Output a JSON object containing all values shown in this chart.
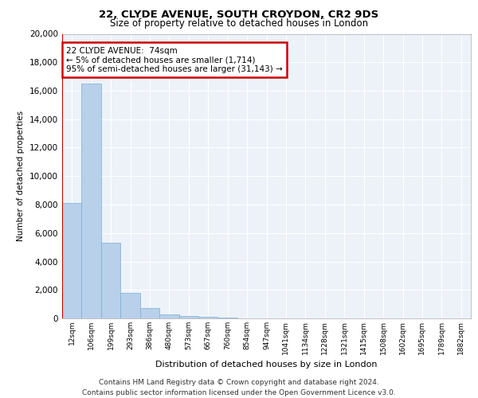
{
  "title1": "22, CLYDE AVENUE, SOUTH CROYDON, CR2 9DS",
  "title2": "Size of property relative to detached houses in London",
  "xlabel": "Distribution of detached houses by size in London",
  "ylabel": "Number of detached properties",
  "categories": [
    "12sqm",
    "106sqm",
    "199sqm",
    "293sqm",
    "386sqm",
    "480sqm",
    "573sqm",
    "667sqm",
    "760sqm",
    "854sqm",
    "947sqm",
    "1041sqm",
    "1134sqm",
    "1228sqm",
    "1321sqm",
    "1415sqm",
    "1508sqm",
    "1602sqm",
    "1695sqm",
    "1789sqm",
    "1882sqm"
  ],
  "values": [
    8100,
    16500,
    5300,
    1800,
    700,
    280,
    170,
    100,
    50,
    0,
    0,
    0,
    0,
    0,
    0,
    0,
    0,
    0,
    0,
    0,
    0
  ],
  "bar_color": "#b8d0ea",
  "bar_edge_color": "#7aafd4",
  "property_line_color": "#cc0000",
  "annotation_box_text": "22 CLYDE AVENUE:  74sqm\n← 5% of detached houses are smaller (1,714)\n95% of semi-detached houses are larger (31,143) →",
  "annotation_box_color": "#cc0000",
  "bg_color": "#edf2f9",
  "grid_color": "#ffffff",
  "ylim": [
    0,
    20000
  ],
  "yticks": [
    0,
    2000,
    4000,
    6000,
    8000,
    10000,
    12000,
    14000,
    16000,
    18000,
    20000
  ],
  "footer_line1": "Contains HM Land Registry data © Crown copyright and database right 2024.",
  "footer_line2": "Contains public sector information licensed under the Open Government Licence v3.0."
}
